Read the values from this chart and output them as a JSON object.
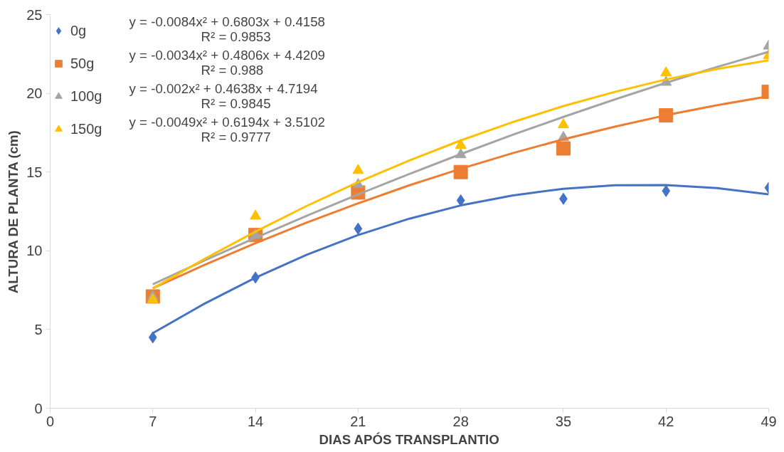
{
  "chart_data": {
    "type": "scatter",
    "xlabel": "DIAS APÓS TRANSPLANTIO",
    "ylabel": "ALTURA DE PLANTA (cm)",
    "x": [
      7,
      14,
      21,
      28,
      35,
      42,
      49
    ],
    "xlim": [
      0,
      49
    ],
    "xticks": [
      0,
      7,
      14,
      21,
      28,
      35,
      42,
      49
    ],
    "ylim": [
      0,
      25
    ],
    "yticks": [
      0,
      5,
      10,
      15,
      20,
      25
    ],
    "grid": false,
    "legend": "top left",
    "series": [
      {
        "name": "0g",
        "color": "#4472c4",
        "marker": "diamond",
        "values": [
          4.5,
          8.3,
          11.4,
          13.2,
          13.3,
          13.8,
          14.0
        ]
      },
      {
        "name": "50g",
        "color": "#ed7d31",
        "marker": "square",
        "values": [
          7.1,
          11.0,
          13.7,
          15.0,
          16.5,
          18.6,
          20.1
        ]
      },
      {
        "name": "100g",
        "color": "#a5a5a5",
        "marker": "triangle",
        "values": [
          7.1,
          11.0,
          14.2,
          16.1,
          17.2,
          20.7,
          23.0
        ]
      },
      {
        "name": "150g",
        "color": "#ffc000",
        "marker": "triangle",
        "values": [
          6.9,
          12.2,
          15.1,
          16.7,
          18.0,
          21.3,
          22.4
        ]
      },
      {
        "type": "line",
        "color": "#4472c4",
        "x": [
          7,
          10.5,
          14,
          17.5,
          21,
          24.5,
          28,
          31.5,
          35,
          38.5,
          42,
          45.5,
          49
        ],
        "values": [
          4.77,
          6.63,
          8.29,
          9.75,
          11.0,
          12.04,
          12.88,
          13.51,
          13.94,
          14.16,
          14.17,
          13.98,
          13.58
        ]
      },
      {
        "type": "line",
        "color": "#ed7d31",
        "x": [
          7,
          10.5,
          14,
          17.5,
          21,
          24.5,
          28,
          31.5,
          35,
          38.5,
          42,
          45.5,
          49
        ],
        "values": [
          7.62,
          9.09,
          10.48,
          11.79,
          13.01,
          14.16,
          15.21,
          16.19,
          17.08,
          17.88,
          18.61,
          19.25,
          19.81
        ]
      },
      {
        "type": "line",
        "color": "#a5a5a5",
        "x": [
          7,
          10.5,
          14,
          17.5,
          21,
          24.5,
          28,
          31.5,
          35,
          38.5,
          42,
          45.5,
          49
        ],
        "values": [
          7.87,
          9.37,
          10.82,
          12.22,
          13.58,
          14.88,
          16.14,
          17.35,
          18.5,
          19.61,
          20.67,
          21.68,
          22.64
        ]
      },
      {
        "type": "line",
        "color": "#ffc000",
        "x": [
          7,
          10.5,
          14,
          17.5,
          21,
          24.5,
          28,
          31.5,
          35,
          38.5,
          42,
          45.5,
          49
        ],
        "values": [
          7.61,
          9.47,
          11.22,
          12.85,
          14.36,
          15.74,
          17.01,
          18.16,
          19.19,
          20.09,
          20.88,
          21.55,
          22.1
        ]
      }
    ],
    "annotations": [
      "y = -0.0084x² + 0.6803x + 0.4158",
      "R² = 0.9853",
      "y = -0.0034x² + 0.4806x + 4.4209",
      "R² = 0.988",
      "y = -0.002x² + 0.4638x + 4.7194",
      "R² = 0.9845",
      "y = -0.0049x² + 0.6194x + 3.5102",
      "R² = 0.9777"
    ]
  }
}
